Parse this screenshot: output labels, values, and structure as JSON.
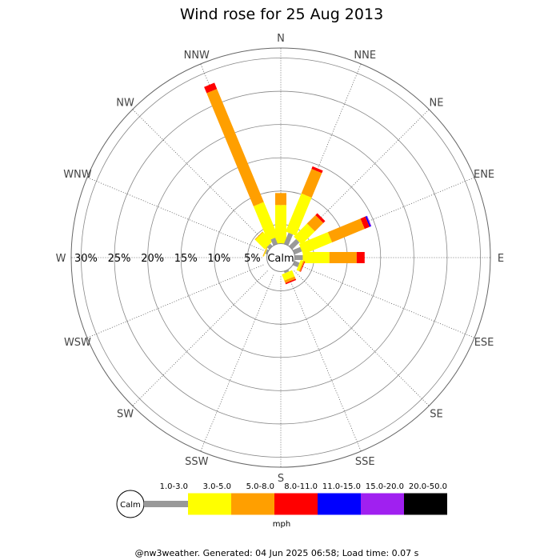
{
  "chart_data": {
    "type": "windrose",
    "title": "Wind rose for 25 Aug 2013",
    "directions": [
      "N",
      "NNE",
      "NE",
      "ENE",
      "E",
      "ESE",
      "SE",
      "SSE",
      "S",
      "SSW",
      "SW",
      "WSW",
      "W",
      "WNW",
      "NW",
      "NNW"
    ],
    "ring_labels": [
      "5%",
      "10%",
      "15%",
      "20%",
      "25%",
      "30%"
    ],
    "rmax_percent": 31.5,
    "calm_label": "Calm",
    "calm_radius_percent": 2.1,
    "speed_bins": [
      "1.0-3.0",
      "3.0-5.0",
      "5.0-8.0",
      "8.0-11.0",
      "11.0-15.0",
      "15.0-20.0",
      "20.0-50.0"
    ],
    "bin_colors": [
      "#999999",
      "#ffff00",
      "#ff9f00",
      "#ff0000",
      "#0000ff",
      "#a020f0",
      "#000000"
    ],
    "series": [
      {
        "dir": "N",
        "values": [
          0.0,
          5.8,
          1.8,
          0,
          0,
          0,
          0
        ]
      },
      {
        "dir": "NNE",
        "values": [
          1.8,
          6.2,
          4.0,
          0.4,
          0,
          0,
          0
        ]
      },
      {
        "dir": "NE",
        "values": [
          1.5,
          2.8,
          1.8,
          0.4,
          0,
          0,
          0
        ]
      },
      {
        "dir": "ENE",
        "values": [
          1.2,
          4.7,
          5.3,
          0.8,
          0.2,
          0.1,
          0
        ]
      },
      {
        "dir": "E",
        "values": [
          1.2,
          4.0,
          4.1,
          1.2,
          0,
          0,
          0
        ]
      },
      {
        "dir": "ESE",
        "values": [
          0.8,
          0.4,
          0.2,
          0.1,
          0,
          0,
          0
        ]
      },
      {
        "dir": "SE",
        "values": [
          0,
          0,
          0,
          0,
          0,
          0,
          0
        ]
      },
      {
        "dir": "SSE",
        "values": [
          0.3,
          1.0,
          0.4,
          0.2,
          0,
          0,
          0
        ]
      },
      {
        "dir": "S",
        "values": [
          0,
          0,
          0,
          0,
          0,
          0,
          0
        ]
      },
      {
        "dir": "SSW",
        "values": [
          0,
          0,
          0,
          0,
          0,
          0,
          0
        ]
      },
      {
        "dir": "SW",
        "values": [
          0,
          0,
          0,
          0,
          0,
          0,
          0
        ]
      },
      {
        "dir": "WSW",
        "values": [
          0,
          0,
          0,
          0,
          0,
          0,
          0
        ]
      },
      {
        "dir": "W",
        "values": [
          0,
          0,
          0,
          0,
          0,
          0,
          0
        ]
      },
      {
        "dir": "WNW",
        "values": [
          0.3,
          0.1,
          0.1,
          0,
          0,
          0,
          0
        ]
      },
      {
        "dir": "NW",
        "values": [
          0.5,
          2.0,
          0.1,
          0,
          0,
          0,
          0
        ]
      },
      {
        "dir": "NNW",
        "values": [
          1.0,
          5.6,
          18.4,
          1.0,
          0,
          0,
          0
        ]
      }
    ],
    "legend_title": "mph",
    "legend_calm": "Calm",
    "grid": true
  },
  "footer": "@nw3weather. Generated: 04 Jun 2025 06:58; Load time: 0.07 s"
}
